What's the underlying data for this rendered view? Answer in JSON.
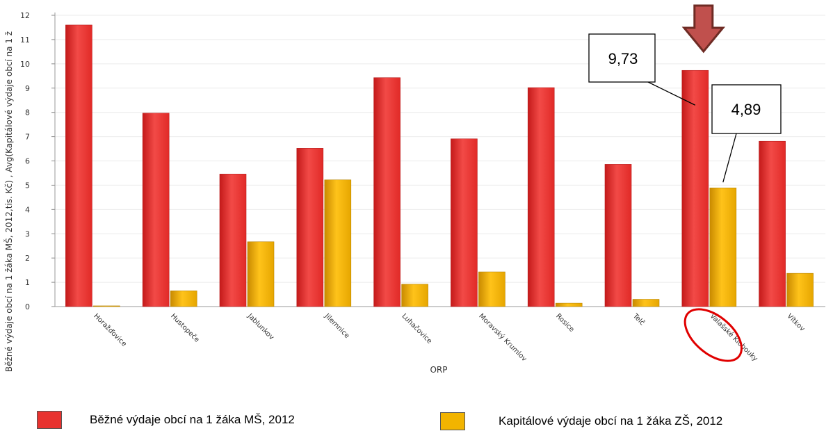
{
  "chart_data": {
    "type": "bar",
    "xlabel": "ORP",
    "ylabel": "Běžné výdaje obcí na 1 žáka MŠ, 2012,tis. Kč) , Avg(Kapitálové výdaje obcí na 1 ž",
    "ylim": [
      0,
      12
    ],
    "yticks": [
      0,
      1,
      2,
      3,
      4,
      5,
      6,
      7,
      8,
      9,
      10,
      11,
      12
    ],
    "grid": true,
    "categories": [
      "Horažďovice",
      "Hustopeče",
      "Jablunkov",
      "Jilemnice",
      "Luhačovice",
      "Moravský Krumlov",
      "Rosice",
      "Telč",
      "Valašské Klobouky",
      "Vítkov"
    ],
    "series": [
      {
        "name": "Běžné výdaje obcí na 1 žáka MŠ, 2012",
        "color": "#e8322f",
        "values": [
          11.6,
          7.97,
          5.46,
          6.52,
          9.43,
          6.91,
          9.02,
          5.86,
          9.73,
          6.81
        ]
      },
      {
        "name": "Kapitálové výdaje obcí na 1 žáka ZŠ, 2012",
        "color": "#f2b400",
        "values": [
          0.03,
          0.65,
          2.67,
          5.22,
          0.92,
          1.43,
          0.14,
          0.3,
          4.89,
          1.37
        ]
      }
    ],
    "annotations": [
      {
        "text": "9,73",
        "category": "Valašské Klobouky",
        "series": 0
      },
      {
        "text": "4,89",
        "category": "Valašské Klobouky",
        "series": 1
      }
    ],
    "highlight": {
      "category": "Valašské Klobouky",
      "arrow_color": "#c0504d",
      "ellipse_color": "#e00000"
    }
  }
}
